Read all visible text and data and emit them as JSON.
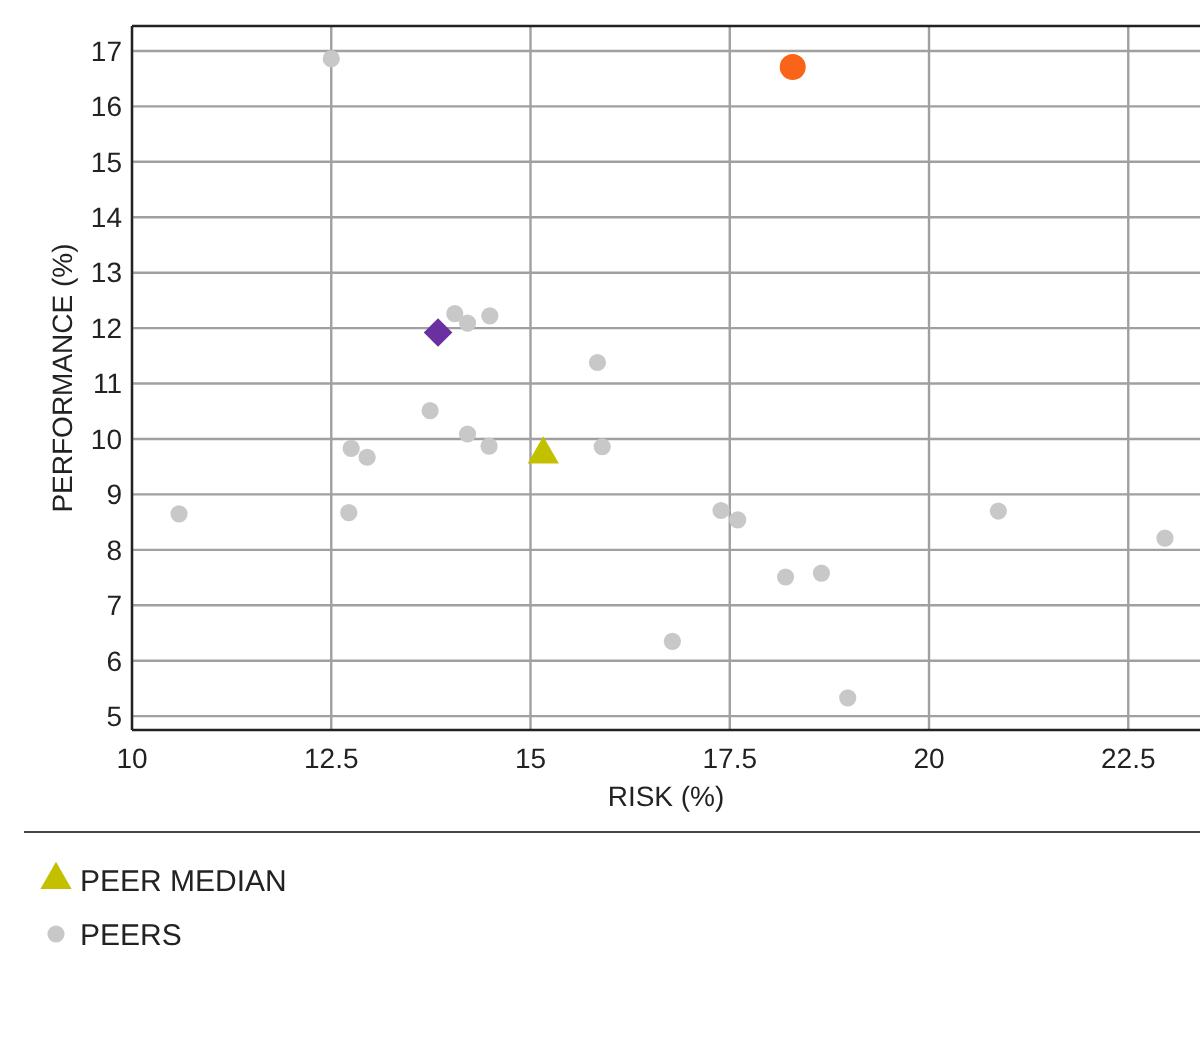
{
  "chart_data": {
    "type": "scatter",
    "xlabel": "RISK (%)",
    "ylabel": "PERFORMANCE (%)",
    "xlim": [
      10,
      23.4
    ],
    "ylim": [
      4.75,
      17.45
    ],
    "xticks": [
      10,
      12.5,
      15,
      17.5,
      20,
      22.5
    ],
    "yticks": [
      5,
      6,
      7,
      8,
      9,
      10,
      11,
      12,
      13,
      14,
      15,
      16,
      17
    ],
    "grid": true,
    "legend": "bottom",
    "series": [
      {
        "name": "PEERS",
        "color": "#c8c8c8",
        "marker": "circle",
        "x": [
          12.5,
          10.59,
          12.72,
          12.75,
          12.95,
          13.74,
          14.05,
          14.21,
          14.49,
          14.21,
          14.48,
          15.84,
          15.9,
          17.39,
          17.6,
          18.2,
          18.65,
          16.78,
          18.98,
          20.87,
          22.96
        ],
        "values": [
          16.86,
          8.65,
          8.67,
          9.83,
          9.67,
          10.51,
          12.26,
          12.09,
          12.22,
          10.09,
          9.87,
          11.38,
          9.86,
          8.71,
          8.54,
          7.51,
          7.58,
          6.35,
          5.33,
          8.7,
          8.21
        ]
      },
      {
        "color": "#6a2fa0",
        "marker": "diamond",
        "x": [
          13.84
        ],
        "values": [
          11.92
        ]
      },
      {
        "name": "PEER MEDIAN",
        "color": "#c3c000",
        "marker": "triangle",
        "x": [
          15.16
        ],
        "values": [
          9.72
        ]
      },
      {
        "color": "#fa6418",
        "marker": "circle",
        "x": [
          18.29
        ],
        "values": [
          16.71
        ]
      }
    ]
  }
}
